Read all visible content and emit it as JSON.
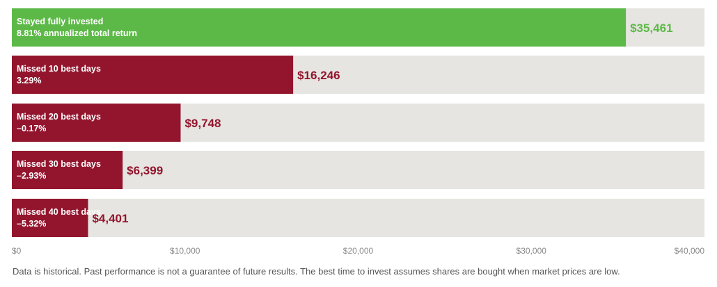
{
  "chart_data": {
    "type": "bar",
    "orientation": "horizontal",
    "xlim": [
      0,
      40000
    ],
    "ticks": [
      {
        "value": 0,
        "label": "$0"
      },
      {
        "value": 10000,
        "label": "$10,000"
      },
      {
        "value": 20000,
        "label": "$20,000"
      },
      {
        "value": 30000,
        "label": "$30,000"
      },
      {
        "value": 40000,
        "label": "$40,000"
      }
    ],
    "bars": [
      {
        "name": "Stayed fully invested",
        "sub": "8.81% annualized total return",
        "value": 35461,
        "value_label": "$35,461",
        "color": "#5cb947"
      },
      {
        "name": "Missed 10 best days",
        "sub": "3.29%",
        "value": 16246,
        "value_label": "$16,246",
        "color": "#93152d"
      },
      {
        "name": "Missed 20 best days",
        "sub": "–0.17%",
        "value": 9748,
        "value_label": "$9,748",
        "color": "#93152d"
      },
      {
        "name": "Missed 30 best days",
        "sub": "–2.93%",
        "value": 6399,
        "value_label": "$6,399",
        "color": "#93152d"
      },
      {
        "name": "Missed 40 best days",
        "sub": "–5.32%",
        "value": 4401,
        "value_label": "$4,401",
        "color": "#93152d"
      }
    ],
    "track_color": "#e6e5e1"
  },
  "footnote": "Data is historical. Past performance is not a guarantee of future results. The best time to invest assumes shares are bought when market prices are low."
}
